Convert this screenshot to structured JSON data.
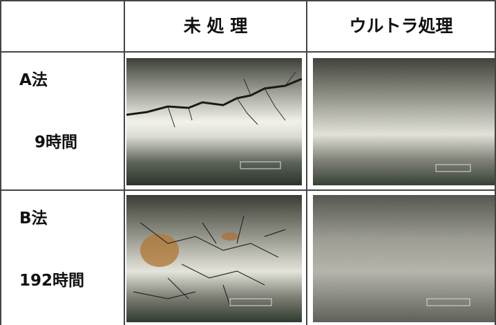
{
  "table": {
    "header": [
      "未 処 理",
      "ウルトラ処理"
    ],
    "rows": [
      {
        "method": "A法",
        "time": "9時間"
      },
      {
        "method": "B法",
        "time": "192時間"
      }
    ]
  }
}
